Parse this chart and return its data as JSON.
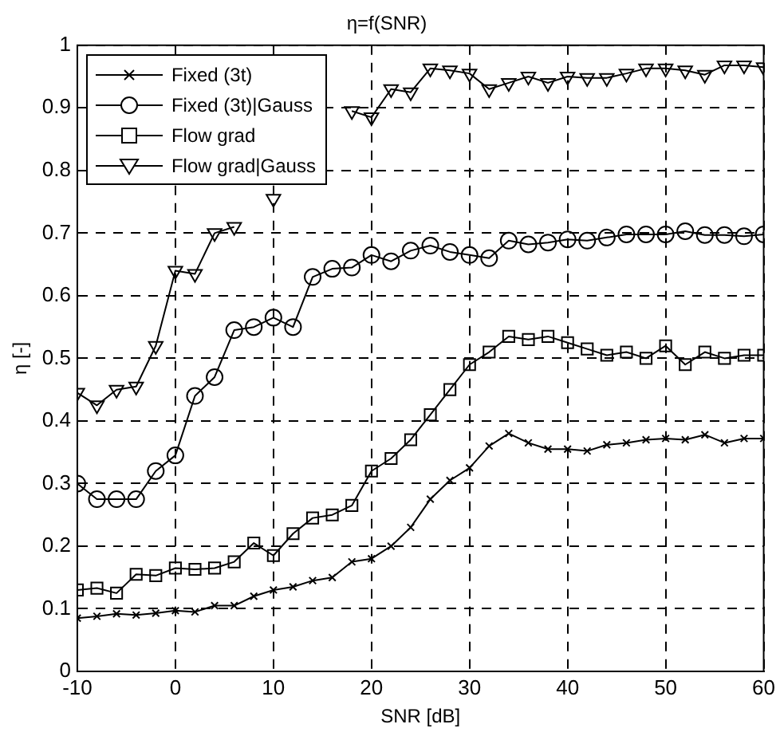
{
  "chart_data": {
    "type": "line",
    "title": "η=f(SNR)",
    "xlabel": "SNR [dB]",
    "ylabel": "η [-]",
    "x": [
      -10,
      -8,
      -6,
      -4,
      -2,
      0,
      2,
      4,
      6,
      8,
      10,
      12,
      14,
      16,
      18,
      20,
      22,
      24,
      26,
      28,
      30,
      32,
      34,
      36,
      38,
      40,
      42,
      44,
      46,
      48,
      50,
      52,
      54,
      56,
      58,
      60
    ],
    "series": [
      {
        "name": "Fixed (3t)",
        "color": "#000000",
        "marker": "cross",
        "values": [
          0.085,
          0.088,
          0.092,
          0.09,
          0.093,
          0.097,
          0.095,
          0.105,
          0.105,
          0.12,
          0.13,
          0.135,
          0.145,
          0.15,
          0.175,
          0.18,
          0.2,
          0.23,
          0.275,
          0.305,
          0.325,
          0.36,
          0.38,
          0.365,
          0.355,
          0.355,
          0.352,
          0.362,
          0.365,
          0.37,
          0.372,
          0.37,
          0.378,
          0.365,
          0.372,
          0.372
        ]
      },
      {
        "name": "Fixed (3t)|Gauss",
        "color": "#000000",
        "marker": "circle",
        "values": [
          0.3,
          0.275,
          0.275,
          0.275,
          0.32,
          0.345,
          0.44,
          0.47,
          0.545,
          0.55,
          0.565,
          0.55,
          0.63,
          0.643,
          0.645,
          0.665,
          0.655,
          0.672,
          0.68,
          0.67,
          0.665,
          0.66,
          0.688,
          0.682,
          0.685,
          0.69,
          0.688,
          0.693,
          0.698,
          0.698,
          0.698,
          0.703,
          0.697,
          0.697,
          0.695,
          0.698
        ]
      },
      {
        "name": "Flow grad",
        "color": "#000000",
        "marker": "square",
        "values": [
          0.13,
          0.133,
          0.125,
          0.155,
          0.153,
          0.165,
          0.163,
          0.165,
          0.175,
          0.205,
          0.185,
          0.22,
          0.245,
          0.25,
          0.265,
          0.32,
          0.34,
          0.37,
          0.41,
          0.45,
          0.49,
          0.51,
          0.535,
          0.53,
          0.535,
          0.525,
          0.515,
          0.505,
          0.51,
          0.5,
          0.52,
          0.49,
          0.51,
          0.5,
          0.505,
          0.505
        ]
      },
      {
        "name": "Flow grad|Gauss",
        "color": "#000000",
        "marker": "triangle",
        "values": [
          0.445,
          0.425,
          0.45,
          0.455,
          0.52,
          0.64,
          0.635,
          0.7,
          0.71,
          null,
          0.755,
          null,
          null,
          null,
          0.895,
          0.885,
          0.93,
          0.925,
          0.963,
          0.96,
          0.955,
          0.93,
          0.94,
          0.95,
          0.94,
          0.95,
          0.948,
          0.948,
          0.955,
          0.963,
          0.963,
          0.96,
          0.953,
          0.968,
          0.968,
          0.965
        ]
      }
    ],
    "xlim": [
      -10,
      60
    ],
    "xticks": [
      -10,
      0,
      10,
      20,
      30,
      40,
      50,
      60
    ],
    "ylim": [
      0,
      1
    ],
    "yticks": [
      0,
      0.1,
      0.2,
      0.3,
      0.4,
      0.5,
      0.6,
      0.7,
      0.8,
      0.9,
      1
    ],
    "grid": true,
    "legend": "top left",
    "line_style": "solid"
  }
}
